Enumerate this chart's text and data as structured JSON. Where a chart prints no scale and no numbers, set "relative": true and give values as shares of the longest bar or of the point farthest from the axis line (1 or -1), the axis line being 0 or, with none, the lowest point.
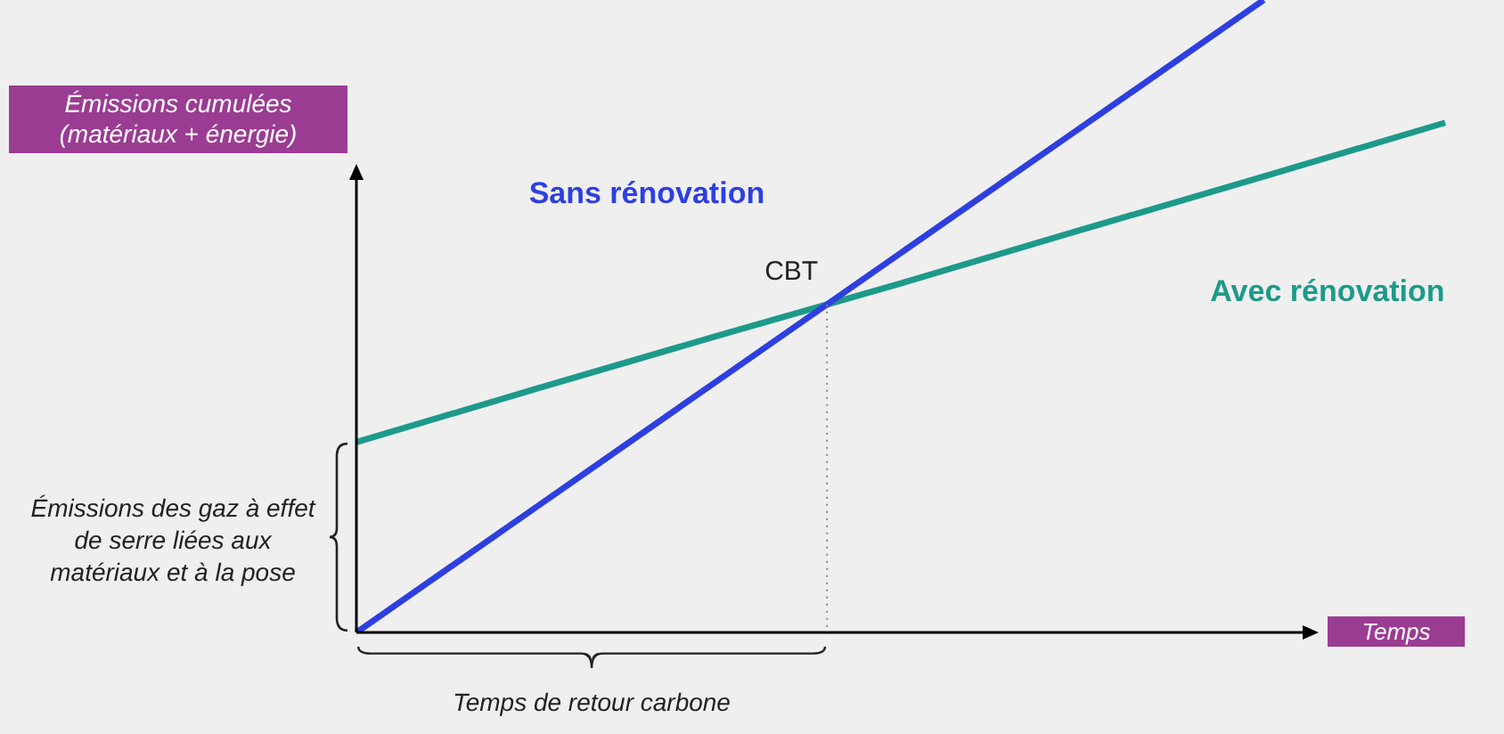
{
  "chart_data": {
    "type": "line",
    "relative": true,
    "marker": "none",
    "line_style": "solid",
    "xlabel": "Temps",
    "ylabel": "Émissions cumulées (matériaux + énergie)",
    "categories": [
      null,
      null,
      null,
      null,
      null,
      null,
      null
    ],
    "series": [
      {
        "name": "Sans rénovation",
        "color": "#2e3fe0",
        "values": [
          0,
          0.2,
          0.4,
          0.6,
          0.8,
          1,
          null
        ]
      },
      {
        "name": "Avec rénovation",
        "color": "#1d9a8a",
        "values": [
          0.301,
          0.386,
          0.47,
          0.552,
          0.637,
          0.721,
          0.806
        ]
      }
    ],
    "annotations": [
      "CBT",
      "Émissions des gaz à effet de serre liées aux matériaux et à la pose",
      "Temps de retour carbone"
    ]
  }
}
